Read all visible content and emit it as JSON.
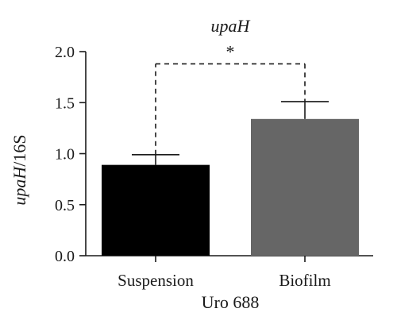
{
  "chart_data": {
    "type": "bar",
    "title": "upaH",
    "ylabel_italic": "upaH",
    "ylabel_rest": "/16S",
    "xlabel": "Uro 688",
    "categories": [
      "Suspension",
      "Biofilm"
    ],
    "values": [
      0.89,
      1.34
    ],
    "errors": [
      0.1,
      0.17
    ],
    "bar_colors": [
      "#000000",
      "#666666"
    ],
    "ylim": [
      0,
      2.0
    ],
    "yticks": [
      "0.0",
      "0.5",
      "1.0",
      "1.5",
      "2.0"
    ],
    "significance": {
      "label": "*",
      "from": "Suspension",
      "to": "Biofilm",
      "at": 1.88
    },
    "grid": false
  }
}
